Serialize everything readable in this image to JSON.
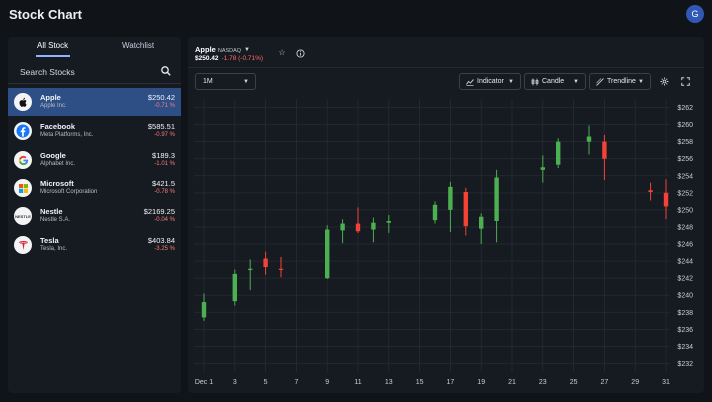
{
  "app": {
    "title": "Stock Chart",
    "avatar_initial": "G"
  },
  "sidebar": {
    "tabs": [
      {
        "label": "All Stock"
      },
      {
        "label": "Watchlist"
      }
    ],
    "search_label": "Search Stocks",
    "stocks": [
      {
        "name": "Apple",
        "company": "Apple Inc.",
        "price": "$250.42",
        "change": "-0.71 %",
        "logo": "apple-logo"
      },
      {
        "name": "Facebook",
        "company": "Meta Platforms, Inc.",
        "price": "$585.51",
        "change": "-0.97 %",
        "logo": "facebook-logo"
      },
      {
        "name": "Google",
        "company": "Alphabet Inc.",
        "price": "$189.3",
        "change": "-1.01 %",
        "logo": "google-logo"
      },
      {
        "name": "Microsoft",
        "company": "Microsoft Corporation",
        "price": "$421.5",
        "change": "-0.78 %",
        "logo": "microsoft-logo"
      },
      {
        "name": "Nestle",
        "company": "Nestle S.A.",
        "price": "$2169.25",
        "change": "-0.04 %",
        "logo": "nestle-logo",
        "logo_text": "NESTLE"
      },
      {
        "name": "Tesla",
        "company": "Tesla, Inc.",
        "price": "$403.84",
        "change": "-3.25 %",
        "logo": "tesla-logo"
      }
    ]
  },
  "header": {
    "symbol": "Apple",
    "exchange": "NASDAQ",
    "price": "$250.42",
    "change": "-1.78 (-0.71%)"
  },
  "controls": {
    "period": "1M",
    "indicator": "Indicator",
    "candle": "Candle",
    "trendline": "Trendline"
  },
  "colors": {
    "up": "#4caf50",
    "down": "#f44336",
    "accent": "#2e4f86"
  },
  "chart_data": {
    "type": "candlestick",
    "y_axis": {
      "min": 231,
      "max": 263,
      "ticks": [
        232,
        234,
        236,
        238,
        240,
        242,
        244,
        246,
        248,
        250,
        252,
        254,
        256,
        258,
        260,
        262
      ],
      "prefix": "$",
      "position": "right"
    },
    "x_axis": {
      "tick_labels": [
        "Dec 1",
        "3",
        "5",
        "7",
        "9",
        "11",
        "13",
        "15",
        "17",
        "19",
        "21",
        "23",
        "25",
        "27",
        "29",
        "31"
      ]
    },
    "grid": true,
    "candles": [
      {
        "day": 1,
        "o": 237.4,
        "h": 240.2,
        "l": 237.0,
        "c": 239.2
      },
      {
        "day": 3,
        "o": 239.3,
        "h": 243.0,
        "l": 238.8,
        "c": 242.5
      },
      {
        "day": 4,
        "o": 243.0,
        "h": 244.2,
        "l": 240.6,
        "c": 243.1
      },
      {
        "day": 5,
        "o": 244.3,
        "h": 245.1,
        "l": 242.4,
        "c": 243.3
      },
      {
        "day": 6,
        "o": 243.1,
        "h": 244.5,
        "l": 242.1,
        "c": 243.0
      },
      {
        "day": 9,
        "o": 242.0,
        "h": 248.2,
        "l": 241.9,
        "c": 247.7
      },
      {
        "day": 10,
        "o": 247.6,
        "h": 248.9,
        "l": 246.1,
        "c": 248.4
      },
      {
        "day": 11,
        "o": 248.4,
        "h": 250.3,
        "l": 247.3,
        "c": 247.5
      },
      {
        "day": 12,
        "o": 247.7,
        "h": 249.1,
        "l": 246.2,
        "c": 248.5
      },
      {
        "day": 13,
        "o": 248.5,
        "h": 249.4,
        "l": 247.3,
        "c": 248.7
      },
      {
        "day": 16,
        "o": 248.8,
        "h": 251.0,
        "l": 248.4,
        "c": 250.6
      },
      {
        "day": 17,
        "o": 250.0,
        "h": 253.3,
        "l": 247.4,
        "c": 252.7
      },
      {
        "day": 18,
        "o": 252.1,
        "h": 252.6,
        "l": 247.0,
        "c": 248.1
      },
      {
        "day": 19,
        "o": 247.8,
        "h": 249.6,
        "l": 246.0,
        "c": 249.2
      },
      {
        "day": 20,
        "o": 248.7,
        "h": 254.7,
        "l": 246.2,
        "c": 253.8
      },
      {
        "day": 23,
        "o": 254.7,
        "h": 256.4,
        "l": 253.2,
        "c": 255.0
      },
      {
        "day": 24,
        "o": 255.3,
        "h": 258.4,
        "l": 254.9,
        "c": 258.0
      },
      {
        "day": 26,
        "o": 258.0,
        "h": 259.9,
        "l": 256.5,
        "c": 258.6
      },
      {
        "day": 27,
        "o": 258.0,
        "h": 258.8,
        "l": 253.5,
        "c": 256.0
      },
      {
        "day": 30,
        "o": 252.3,
        "h": 253.2,
        "l": 251.1,
        "c": 252.1
      },
      {
        "day": 31,
        "o": 252.0,
        "h": 253.6,
        "l": 248.9,
        "c": 250.4
      }
    ]
  }
}
